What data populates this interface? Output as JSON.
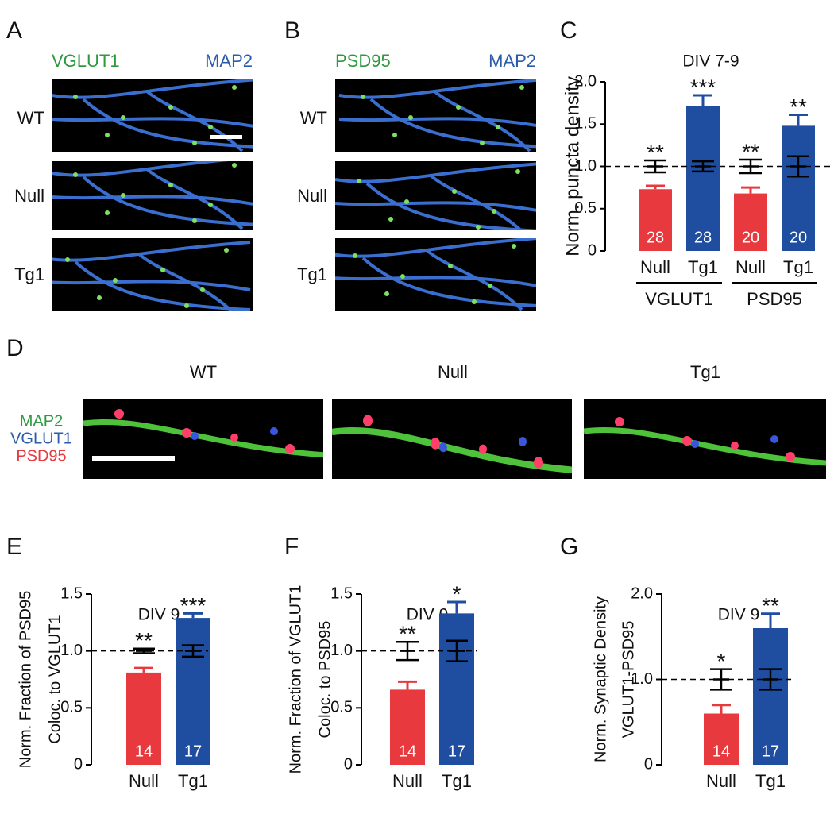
{
  "panels": {
    "A": {
      "letter": "A",
      "stain1": "VGLUT1",
      "stain2": "MAP2",
      "rows": [
        "WT",
        "Null",
        "Tg1"
      ]
    },
    "B": {
      "letter": "B",
      "stain1": "PSD95",
      "stain2": "MAP2",
      "rows": [
        "WT",
        "Null",
        "Tg1"
      ]
    },
    "C": {
      "letter": "C"
    },
    "D": {
      "letter": "D",
      "columns": [
        "WT",
        "Null",
        "Tg1"
      ],
      "stains": [
        "MAP2",
        "VGLUT1",
        "PSD95"
      ]
    },
    "E": {
      "letter": "E"
    },
    "F": {
      "letter": "F"
    },
    "G": {
      "letter": "G"
    }
  },
  "chart_data": [
    {
      "type": "bar",
      "title": "DIV 7-9",
      "ylabel": [
        "Norm. puncta density"
      ],
      "categories": [
        "Null",
        "Tg1",
        "Null",
        "Tg1"
      ],
      "group_labels": [
        "VGLUT1",
        "PSD95"
      ],
      "values": [
        0.73,
        1.71,
        0.68,
        1.48
      ],
      "errors": [
        0.04,
        0.13,
        0.07,
        0.13
      ],
      "colors": [
        "#e8393e",
        "#1f4ea0",
        "#e8393e",
        "#1f4ea0"
      ],
      "n": [
        28,
        28,
        20,
        20
      ],
      "significance": [
        "**",
        "***",
        "**",
        "**"
      ],
      "reference": 1.0,
      "control_values": [
        1.0,
        1.0,
        1.0,
        1.0
      ],
      "control_errors": [
        0.07,
        0.06,
        0.08,
        0.12
      ],
      "ylim": [
        0,
        2.0
      ],
      "yticks": [
        0,
        0.5,
        {
          "value": 1.0,
          "label": "1.0"
        },
        1.5,
        {
          "value": 2.0,
          "label": "2.0"
        }
      ]
    },
    {
      "type": "bar",
      "title": "DIV 9",
      "ylabel": [
        "Norm. Fraction of PSD95",
        "Coloc. to VGLUT1"
      ],
      "categories": [
        "Null",
        "Tg1"
      ],
      "values": [
        0.81,
        1.29
      ],
      "errors": [
        0.04,
        0.04
      ],
      "colors": [
        "#e8393e",
        "#1f4ea0"
      ],
      "n": [
        14,
        17
      ],
      "significance": [
        "**",
        "***"
      ],
      "reference": 1.0,
      "control_values": [
        1.0,
        1.0
      ],
      "control_errors": [
        0.02,
        0.05
      ],
      "ylim": [
        0,
        1.5
      ],
      "yticks": [
        0,
        0.5,
        {
          "value": 1.0,
          "label": "1.0"
        },
        1.5
      ]
    },
    {
      "type": "bar",
      "title": "DIV 9",
      "ylabel": [
        "Norm. Fraction of VGLUT1",
        "Coloc. to PSD95"
      ],
      "categories": [
        "Null",
        "Tg1"
      ],
      "values": [
        0.66,
        1.33
      ],
      "errors": [
        0.07,
        0.1
      ],
      "colors": [
        "#e8393e",
        "#1f4ea0"
      ],
      "n": [
        14,
        17
      ],
      "significance": [
        "**",
        "*"
      ],
      "reference": 1.0,
      "control_values": [
        1.0,
        1.0
      ],
      "control_errors": [
        0.08,
        0.09
      ],
      "ylim": [
        0,
        1.5
      ],
      "yticks": [
        0,
        0.5,
        {
          "value": 1.0,
          "label": "1.0"
        },
        1.5
      ]
    },
    {
      "type": "bar",
      "title": "DIV 9",
      "ylabel": [
        "Norm. Synaptic Density",
        "VGLUT1-PSD95"
      ],
      "categories": [
        "Null",
        "Tg1"
      ],
      "values": [
        0.6,
        1.6
      ],
      "errors": [
        0.1,
        0.17
      ],
      "colors": [
        "#e8393e",
        "#1f4ea0"
      ],
      "n": [
        14,
        17
      ],
      "significance": [
        "*",
        "**"
      ],
      "reference": 1.0,
      "control_values": [
        1.0,
        1.0
      ],
      "control_errors": [
        0.12,
        0.12
      ],
      "ylim": [
        0,
        2.0
      ],
      "yticks": [
        0,
        {
          "value": 1.0,
          "label": "1.0"
        },
        {
          "value": 2.0,
          "label": "2.0"
        }
      ]
    }
  ]
}
